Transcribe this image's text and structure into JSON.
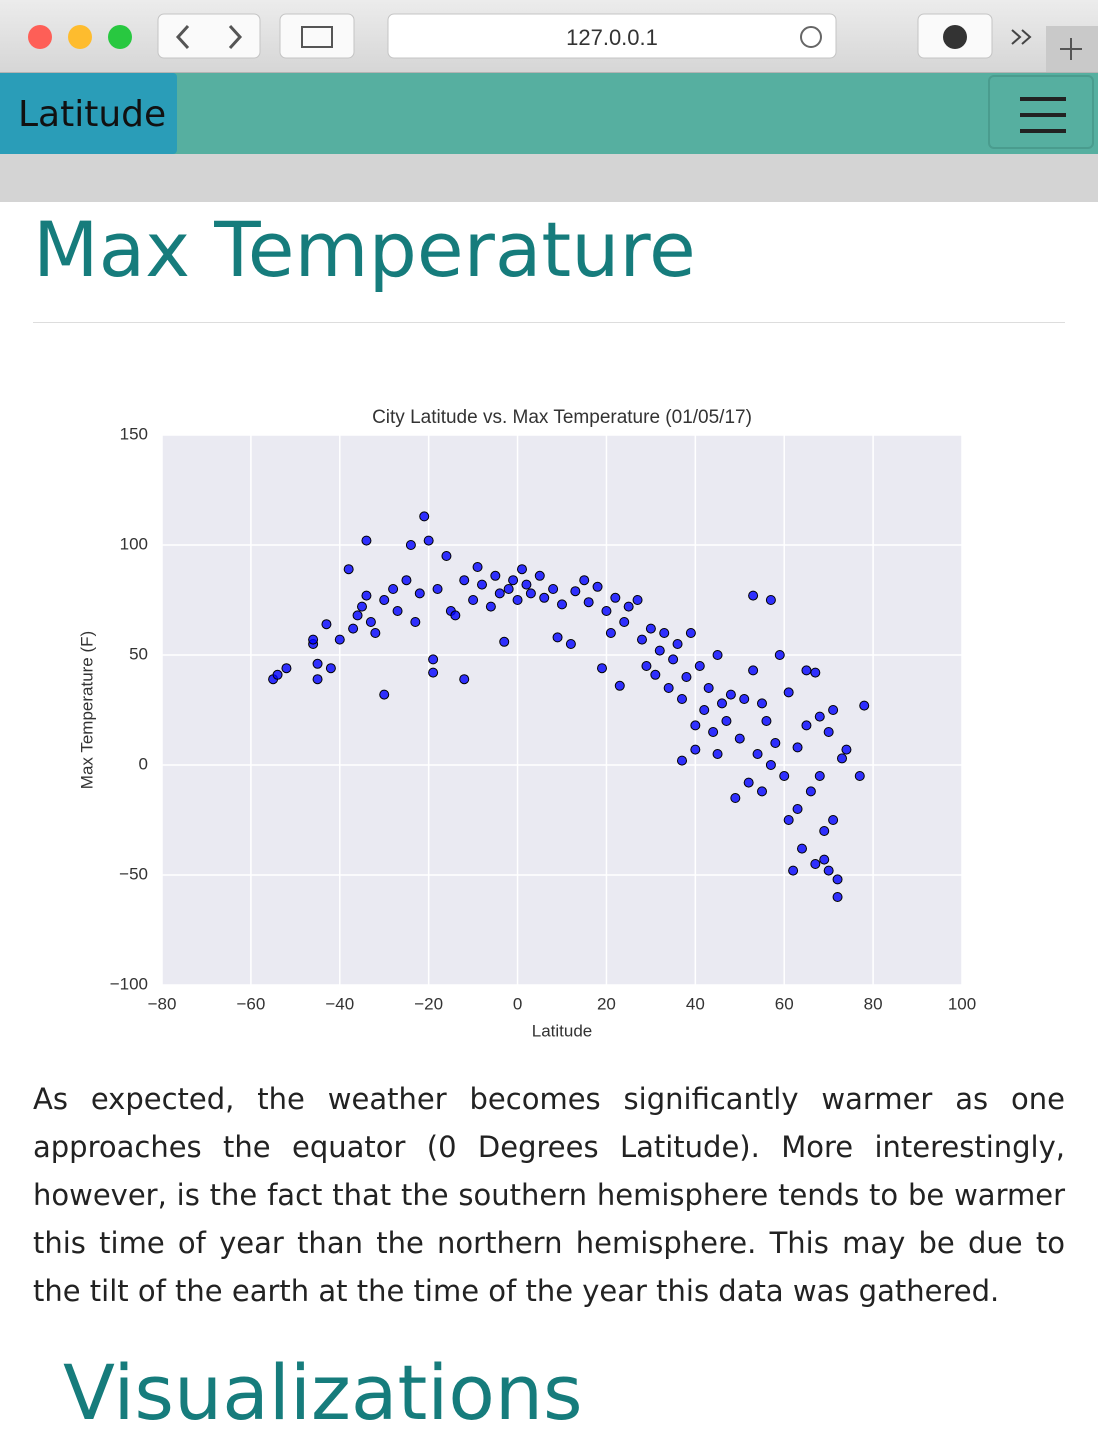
{
  "browser": {
    "url": "127.0.0.1"
  },
  "navbar": {
    "brand": "Latitude"
  },
  "heading": "Max Temperature",
  "chart_data": {
    "type": "scatter",
    "title": "City Latitude vs. Max Temperature (01/05/17)",
    "x_label": "Latitude",
    "y_label": "Max Temperature (F)",
    "xlim": [
      -80,
      100
    ],
    "ylim": [
      -100,
      150
    ],
    "xticks": [
      {
        "value": -80,
        "label": "−80"
      },
      {
        "value": -60,
        "label": "−60"
      },
      {
        "value": -40,
        "label": "−40"
      },
      {
        "value": -20,
        "label": "−20"
      },
      0,
      20,
      40,
      60,
      80,
      100
    ],
    "yticks": [
      {
        "value": -100,
        "label": "−100"
      },
      {
        "value": -50,
        "label": "−50"
      },
      0,
      50,
      100,
      150
    ],
    "grid": true,
    "color": "#0000ff",
    "x": [
      -55,
      -54,
      -52,
      -46,
      -46,
      -45,
      -45,
      -42,
      -43,
      -40,
      -38,
      -37,
      -36,
      -35,
      -34,
      -34,
      -33,
      -32,
      -30,
      -30,
      -28,
      -27,
      -25,
      -24,
      -23,
      -22,
      -21,
      -20,
      -19,
      -19,
      -18,
      -16,
      -15,
      -14,
      -12,
      -12,
      -10,
      -9,
      -8,
      -6,
      -5,
      -4,
      -3,
      -2,
      -1,
      0,
      1,
      2,
      3,
      5,
      6,
      8,
      9,
      10,
      12,
      13,
      15,
      16,
      18,
      19,
      20,
      21,
      22,
      23,
      24,
      25,
      27,
      28,
      29,
      30,
      31,
      32,
      33,
      34,
      35,
      36,
      37,
      37,
      38,
      39,
      40,
      40,
      41,
      42,
      43,
      44,
      45,
      45,
      46,
      47,
      48,
      49,
      50,
      51,
      52,
      53,
      53,
      54,
      55,
      55,
      56,
      57,
      57,
      58,
      59,
      60,
      61,
      61,
      62,
      63,
      63,
      64,
      65,
      65,
      66,
      67,
      67,
      68,
      68,
      69,
      69,
      70,
      70,
      71,
      71,
      72,
      72,
      73,
      74,
      77,
      78
    ],
    "values": [
      39,
      41,
      44,
      55,
      57,
      46,
      39,
      44,
      64,
      57,
      89,
      62,
      68,
      72,
      102,
      77,
      65,
      60,
      32,
      75,
      80,
      70,
      84,
      100,
      65,
      78,
      113,
      102,
      48,
      42,
      80,
      95,
      70,
      68,
      84,
      39,
      75,
      90,
      82,
      72,
      86,
      78,
      56,
      80,
      84,
      75,
      89,
      82,
      78,
      86,
      76,
      80,
      58,
      73,
      55,
      79,
      84,
      74,
      81,
      44,
      70,
      60,
      76,
      36,
      65,
      72,
      75,
      57,
      45,
      62,
      41,
      52,
      60,
      35,
      48,
      55,
      30,
      2,
      40,
      60,
      18,
      7,
      45,
      25,
      35,
      15,
      50,
      5,
      28,
      20,
      32,
      -15,
      12,
      30,
      -8,
      43,
      77,
      5,
      28,
      -12,
      20,
      75,
      0,
      10,
      50,
      -5,
      33,
      -25,
      -48,
      -20,
      8,
      -38,
      43,
      18,
      -12,
      -45,
      42,
      -5,
      22,
      -30,
      -43,
      15,
      -48,
      25,
      -25,
      -52,
      -60,
      3,
      7,
      -5,
      27
    ]
  },
  "paragraph": "As expected, the weather becomes significantly warmer as one approaches the equator (0 Degrees Latitude). More interestingly, however, is the fact that the southern hemisphere tends to be warmer this time of year than the northern hemisphere. This may be due to the tilt of the earth at the time of the year this data was gathered.",
  "next_heading": "Visualizations"
}
